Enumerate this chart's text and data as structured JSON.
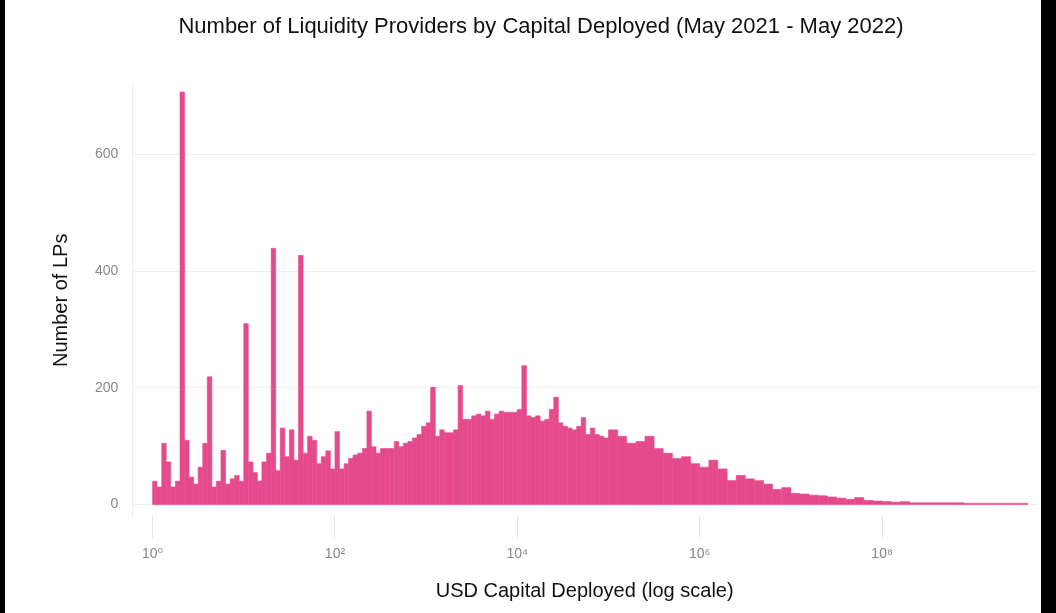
{
  "chart_data": {
    "type": "histogram",
    "title": "Number of Liquidity Providers by Capital Deployed (May 2021 - May 2022)",
    "xlabel": "USD Capital Deployed (log scale)",
    "ylabel": "Number of LPs",
    "color": "#e54a8c",
    "log": "x",
    "grid": "y",
    "xlim": [
      0.6,
      5000000000
    ],
    "xticks": [
      {
        "value": 1,
        "label": "10⁰"
      },
      {
        "value": 100,
        "label": "10²"
      },
      {
        "value": 10000,
        "label": "10⁴"
      },
      {
        "value": 1000000,
        "label": "10⁶"
      },
      {
        "value": 100000000,
        "label": "10⁸"
      }
    ],
    "ylim": [
      -20,
      720
    ],
    "yticks": [
      0,
      200,
      400,
      600
    ],
    "bins": [
      1,
      1.12,
      1.26,
      1.41,
      1.58,
      1.78,
      2,
      2.24,
      2.51,
      2.82,
      3.16,
      3.55,
      3.98,
      4.47,
      5.01,
      5.62,
      6.31,
      7.08,
      7.94,
      8.91,
      10,
      11.2,
      12.6,
      14.1,
      15.8,
      17.8,
      20,
      22.4,
      25.1,
      28.2,
      31.6,
      35.5,
      39.8,
      44.7,
      50.1,
      56.2,
      63.1,
      70.8,
      79.4,
      89.1,
      100,
      112,
      126,
      141,
      158,
      178,
      200,
      224,
      251,
      282,
      316,
      355,
      398,
      447,
      501,
      562,
      631,
      708,
      794,
      891,
      1000,
      1120,
      1260,
      1410,
      1580,
      1780,
      2000,
      2240,
      2510,
      2820,
      3160,
      3550,
      3980,
      4470,
      5010,
      5620,
      6310,
      7080,
      7940,
      8910,
      10000,
      11200,
      12600,
      14100,
      15800,
      17800,
      20000,
      22400,
      25100,
      28200,
      31600,
      35500,
      39800,
      44700,
      50100,
      56200,
      63100,
      70800,
      79400,
      89100,
      100000,
      126000,
      158000,
      200000,
      251000,
      316000,
      398000,
      501000,
      631000,
      794000,
      1000000,
      1260000,
      1580000,
      2000000,
      2510000,
      3160000,
      3980000,
      5010000,
      6310000,
      7940000,
      10000000,
      12600000,
      15800000,
      20000000,
      25100000,
      31600000,
      39800000,
      50100000,
      63100000,
      79400000,
      100000000,
      126000000,
      158000000,
      200000000,
      251000000,
      316000000,
      398000000,
      501000000,
      631000000,
      794000000,
      1000000000,
      1260000000,
      1580000000,
      2000000000,
      2510000000,
      3160000000,
      3980000000
    ],
    "values": [
      40,
      30,
      105,
      73,
      30,
      40,
      707,
      110,
      47,
      35,
      64,
      105,
      219,
      30,
      40,
      93,
      35,
      44,
      50,
      40,
      310,
      73,
      55,
      40,
      73,
      88,
      439,
      58,
      131,
      82,
      128,
      76,
      427,
      88,
      117,
      110,
      70,
      82,
      92,
      61,
      125,
      61,
      70,
      79,
      85,
      88,
      96,
      160,
      99,
      88,
      96,
      96,
      96,
      108,
      99,
      105,
      108,
      114,
      120,
      134,
      140,
      201,
      117,
      128,
      123,
      123,
      128,
      204,
      146,
      146,
      152,
      155,
      152,
      160,
      146,
      155,
      160,
      158,
      158,
      158,
      163,
      238,
      152,
      149,
      152,
      143,
      146,
      163,
      184,
      140,
      134,
      131,
      128,
      134,
      149,
      120,
      131,
      120,
      117,
      114,
      128,
      117,
      105,
      108,
      117,
      96,
      88,
      79,
      82,
      70,
      64,
      76,
      61,
      41,
      50,
      44,
      41,
      35,
      26,
      29,
      19,
      18,
      16,
      15,
      13,
      11,
      9,
      12,
      7,
      6,
      5,
      4,
      5,
      3,
      3,
      3,
      3,
      3,
      3,
      2,
      2,
      2,
      2,
      2,
      2,
      2
    ]
  }
}
